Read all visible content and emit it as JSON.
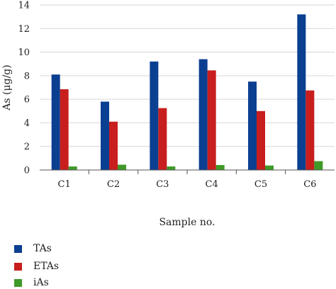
{
  "chart_data": {
    "type": "bar",
    "categories": [
      "C1",
      "C2",
      "C3",
      "C4",
      "C5",
      "C6"
    ],
    "series": [
      {
        "name": "TAs",
        "color": "#0b3f91",
        "values": [
          8.1,
          5.8,
          9.2,
          9.4,
          7.5,
          13.2
        ]
      },
      {
        "name": "ETAs",
        "color": "#c81e1e",
        "values": [
          6.85,
          4.1,
          5.25,
          8.45,
          5.0,
          6.75
        ]
      },
      {
        "name": "iAs",
        "color": "#3f9a28",
        "values": [
          0.3,
          0.45,
          0.3,
          0.42,
          0.38,
          0.75
        ]
      }
    ],
    "xlabel": "Sample no.",
    "ylabel": "As (μg/g)",
    "ylim": [
      0,
      14
    ],
    "yticks": [
      0,
      2,
      4,
      6,
      8,
      10,
      12,
      14
    ],
    "grid": true,
    "legend": "bottom-left"
  }
}
